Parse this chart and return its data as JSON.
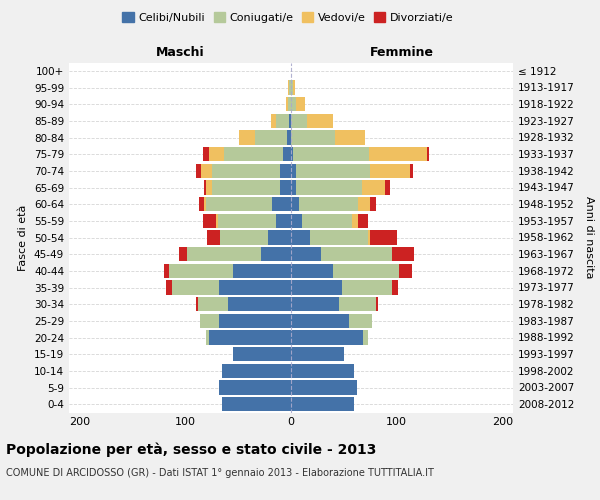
{
  "age_groups": [
    "0-4",
    "5-9",
    "10-14",
    "15-19",
    "20-24",
    "25-29",
    "30-34",
    "35-39",
    "40-44",
    "45-49",
    "50-54",
    "55-59",
    "60-64",
    "65-69",
    "70-74",
    "75-79",
    "80-84",
    "85-89",
    "90-94",
    "95-99",
    "100+"
  ],
  "birth_years": [
    "2008-2012",
    "2003-2007",
    "1998-2002",
    "1993-1997",
    "1988-1992",
    "1983-1987",
    "1978-1982",
    "1973-1977",
    "1968-1972",
    "1963-1967",
    "1958-1962",
    "1953-1957",
    "1948-1952",
    "1943-1947",
    "1938-1942",
    "1933-1937",
    "1928-1932",
    "1923-1927",
    "1918-1922",
    "1913-1917",
    "≤ 1912"
  ],
  "males": {
    "celibi": [
      65,
      68,
      65,
      55,
      78,
      68,
      60,
      68,
      55,
      28,
      22,
      14,
      18,
      10,
      10,
      8,
      4,
      2,
      0,
      0,
      0
    ],
    "coniugati": [
      0,
      0,
      0,
      0,
      2,
      18,
      28,
      45,
      60,
      70,
      45,
      55,
      62,
      65,
      65,
      55,
      30,
      12,
      3,
      2,
      0
    ],
    "vedovi": [
      0,
      0,
      0,
      0,
      0,
      0,
      0,
      0,
      0,
      0,
      0,
      2,
      2,
      5,
      10,
      15,
      15,
      5,
      2,
      1,
      0
    ],
    "divorziati": [
      0,
      0,
      0,
      0,
      0,
      0,
      2,
      5,
      5,
      8,
      12,
      12,
      5,
      2,
      5,
      5,
      0,
      0,
      0,
      0,
      0
    ]
  },
  "females": {
    "nubili": [
      60,
      62,
      60,
      50,
      68,
      55,
      45,
      48,
      40,
      28,
      18,
      10,
      8,
      5,
      5,
      2,
      0,
      0,
      0,
      0,
      0
    ],
    "coniugate": [
      0,
      0,
      0,
      0,
      5,
      22,
      35,
      48,
      62,
      68,
      55,
      48,
      55,
      62,
      70,
      72,
      42,
      15,
      5,
      2,
      0
    ],
    "vedove": [
      0,
      0,
      0,
      0,
      0,
      0,
      0,
      0,
      0,
      0,
      2,
      5,
      12,
      22,
      38,
      55,
      28,
      25,
      8,
      2,
      0
    ],
    "divorziate": [
      0,
      0,
      0,
      0,
      0,
      0,
      2,
      5,
      12,
      20,
      25,
      10,
      5,
      5,
      2,
      2,
      0,
      0,
      0,
      0,
      0
    ]
  },
  "colors": {
    "celibi": "#4472a8",
    "coniugati": "#b5c99a",
    "vedovi": "#f0c060",
    "divorziati": "#cc2222"
  },
  "xlim": 210,
  "title": "Popolazione per età, sesso e stato civile - 2013",
  "subtitle": "COMUNE DI ARCIDOSSO (GR) - Dati ISTAT 1° gennaio 2013 - Elaborazione TUTTITALIA.IT",
  "xlabel_left": "Maschi",
  "xlabel_right": "Femmine",
  "ylabel": "Fasce di età",
  "ylabel_right": "Anni di nascita",
  "bg_color": "#f0f0f0",
  "plot_bg": "#ffffff"
}
